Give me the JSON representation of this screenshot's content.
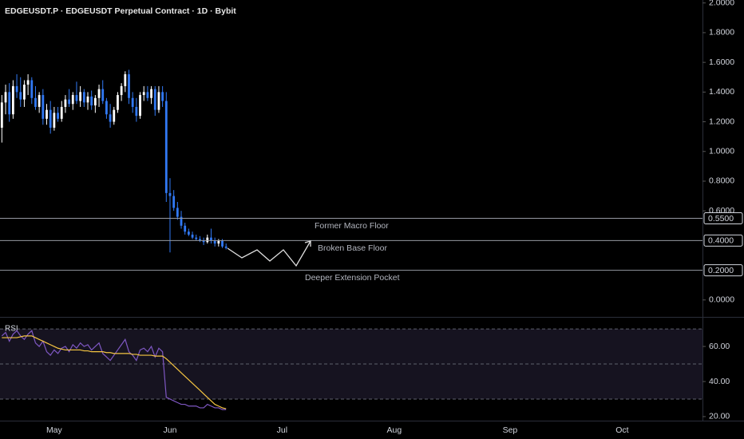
{
  "chart_data": [
    {
      "type": "candlestick",
      "title": "EDGEUSDT.P · EDGEUSDT Perpetual Contract · 1D · Bybit",
      "x": [
        0,
        1,
        2,
        3,
        4,
        5,
        6,
        7,
        8,
        9,
        10,
        11,
        12,
        13,
        14,
        15,
        16,
        17,
        18,
        19,
        20,
        21,
        22,
        23,
        24,
        25,
        26,
        27,
        28,
        29,
        30,
        31,
        32,
        33,
        34,
        35,
        36,
        37,
        38,
        39,
        40,
        41,
        42,
        43,
        44,
        45,
        46,
        47,
        48,
        49,
        50,
        51,
        52,
        53,
        54,
        55,
        56,
        57,
        58,
        59,
        60
      ],
      "open": [
        1.16,
        1.33,
        1.4,
        1.25,
        1.44,
        1.4,
        1.35,
        1.45,
        1.48,
        1.36,
        1.3,
        1.38,
        1.22,
        1.28,
        1.16,
        1.26,
        1.22,
        1.3,
        1.35,
        1.32,
        1.38,
        1.34,
        1.4,
        1.33,
        1.37,
        1.31,
        1.36,
        1.42,
        1.34,
        1.25,
        1.2,
        1.28,
        1.38,
        1.44,
        1.52,
        1.36,
        1.3,
        1.24,
        1.38,
        1.4,
        1.36,
        1.42,
        1.28,
        1.4,
        1.34,
        0.72,
        0.7,
        0.62,
        0.56,
        0.5,
        0.46,
        0.44,
        0.42,
        0.41,
        0.4,
        0.39,
        0.42,
        0.4,
        0.38,
        0.4,
        0.36
      ],
      "high": [
        1.38,
        1.45,
        1.46,
        1.48,
        1.52,
        1.5,
        1.48,
        1.52,
        1.5,
        1.44,
        1.4,
        1.42,
        1.32,
        1.34,
        1.3,
        1.3,
        1.34,
        1.38,
        1.42,
        1.4,
        1.47,
        1.44,
        1.42,
        1.4,
        1.41,
        1.38,
        1.45,
        1.48,
        1.36,
        1.32,
        1.3,
        1.4,
        1.46,
        1.54,
        1.55,
        1.4,
        1.36,
        1.4,
        1.44,
        1.44,
        1.44,
        1.44,
        1.44,
        1.44,
        1.4,
        0.82,
        0.74,
        0.66,
        0.6,
        0.52,
        0.48,
        0.46,
        0.44,
        0.43,
        0.42,
        0.44,
        0.48,
        0.42,
        0.41,
        0.41,
        0.38
      ],
      "low": [
        1.06,
        1.25,
        1.2,
        1.22,
        1.36,
        1.3,
        1.3,
        1.38,
        1.32,
        1.28,
        1.26,
        1.18,
        1.18,
        1.12,
        1.14,
        1.2,
        1.2,
        1.26,
        1.3,
        1.28,
        1.32,
        1.3,
        1.3,
        1.28,
        1.28,
        1.26,
        1.3,
        1.32,
        1.22,
        1.16,
        1.18,
        1.26,
        1.34,
        1.4,
        1.32,
        1.26,
        1.2,
        1.22,
        1.34,
        1.34,
        1.32,
        1.24,
        1.26,
        1.3,
        0.66,
        0.32,
        0.6,
        0.54,
        0.48,
        0.44,
        0.43,
        0.41,
        0.4,
        0.39,
        0.37,
        0.38,
        0.38,
        0.36,
        0.36,
        0.35,
        0.34
      ],
      "close": [
        1.33,
        1.4,
        1.25,
        1.44,
        1.4,
        1.35,
        1.45,
        1.48,
        1.36,
        1.3,
        1.38,
        1.22,
        1.28,
        1.16,
        1.26,
        1.22,
        1.3,
        1.35,
        1.32,
        1.38,
        1.34,
        1.4,
        1.33,
        1.37,
        1.31,
        1.36,
        1.42,
        1.34,
        1.25,
        1.2,
        1.28,
        1.38,
        1.44,
        1.52,
        1.36,
        1.3,
        1.24,
        1.38,
        1.4,
        1.36,
        1.42,
        1.28,
        1.4,
        1.34,
        0.72,
        0.7,
        0.62,
        0.56,
        0.5,
        0.46,
        0.44,
        0.42,
        0.41,
        0.4,
        0.39,
        0.42,
        0.4,
        0.38,
        0.4,
        0.36,
        0.35
      ],
      "up_color": "#ffffff",
      "down_color": "#3179f5",
      "xlim": [
        -0.5,
        187.5
      ],
      "xticks": [
        {
          "value": 14,
          "label": "May"
        },
        {
          "value": 45,
          "label": "Jun"
        },
        {
          "value": 75,
          "label": "Jul"
        },
        {
          "value": 105,
          "label": "Aug"
        },
        {
          "value": 136,
          "label": "Sep"
        },
        {
          "value": 166,
          "label": "Oct"
        }
      ],
      "ylim": [
        -0.1,
        2.02
      ],
      "yticks": [
        {
          "value": 0,
          "label": "0.0000"
        },
        {
          "value": 0.6,
          "label": "0.6000"
        },
        {
          "value": 0.8,
          "label": "0.8000"
        },
        {
          "value": 1,
          "label": "1.0000"
        },
        {
          "value": 1.2,
          "label": "1.2000"
        },
        {
          "value": 1.4,
          "label": "1.4000"
        },
        {
          "value": 1.6,
          "label": "1.6000"
        },
        {
          "value": 1.8,
          "label": "1.8000"
        },
        {
          "value": 2,
          "label": "2.0000"
        }
      ],
      "levels": [
        {
          "value": 0.55,
          "label": "0.5500"
        },
        {
          "value": 0.4,
          "label": "0.4000"
        },
        {
          "value": 0.2,
          "label": "0.2000"
        }
      ],
      "annotations": [
        "Former Macro Floor",
        "Broken Base Floor",
        "Deeper Extension Pocket"
      ]
    },
    {
      "type": "line",
      "title": "RSI",
      "series": [
        {
          "color": "#7e57c2",
          "values": [
            66,
            68,
            63,
            67,
            69,
            66,
            64,
            67,
            69,
            62,
            60,
            63,
            57,
            55,
            58,
            56,
            59,
            60,
            57,
            61,
            59,
            62,
            60,
            61,
            58,
            60,
            62,
            56,
            54,
            52,
            55,
            58,
            61,
            64,
            57,
            55,
            52,
            58,
            59,
            57,
            60,
            54,
            59,
            57,
            31,
            30,
            29,
            28,
            27,
            27,
            26,
            26,
            26,
            25,
            25,
            27,
            26,
            25,
            25,
            24,
            24
          ]
        },
        {
          "color": "#f5c542",
          "values": [
            65,
            65,
            65,
            65,
            65,
            65.5,
            66,
            66,
            66,
            65,
            64,
            63,
            62,
            61,
            60,
            59,
            58.5,
            58,
            58,
            58,
            58,
            58,
            57.5,
            57.5,
            57,
            57,
            57,
            57,
            56.5,
            56.5,
            56,
            56,
            56,
            56,
            56,
            55.5,
            55.5,
            55,
            55,
            55,
            55,
            54.5,
            54.5,
            54.5,
            53,
            51,
            49,
            47,
            45,
            43,
            41,
            39,
            37,
            35,
            33,
            31,
            29,
            27,
            26,
            25,
            24.5
          ]
        }
      ],
      "xlim": [
        -0.5,
        187.5
      ],
      "ylim": [
        17.7,
        75.5
      ],
      "yticks": [
        {
          "value": 20,
          "label": "20.00"
        },
        {
          "value": 40,
          "label": "40.00"
        },
        {
          "value": 60,
          "label": "60.00"
        }
      ],
      "levels": [
        30,
        50,
        70
      ]
    }
  ]
}
